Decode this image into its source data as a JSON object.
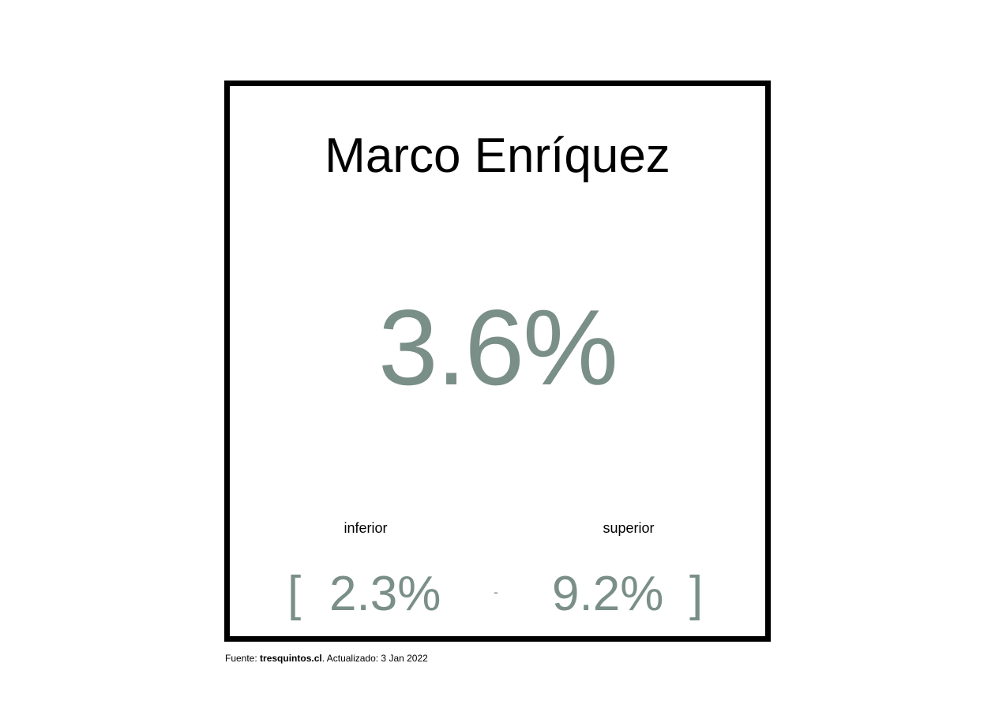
{
  "colors": {
    "accent": "#7a8f87",
    "text": "#000000",
    "border": "#000000",
    "background": "#ffffff"
  },
  "card": {
    "name": "Marco Enríquez",
    "main_value": "3.6%",
    "interval": {
      "lower_label": "inferior",
      "upper_label": "superior",
      "open_bracket": "[",
      "close_bracket": "]",
      "lower_value": "2.3%",
      "separator": "-",
      "upper_value": "9.2%"
    }
  },
  "footer": {
    "prefix": "Fuente: ",
    "source": "tresquintos.cl",
    "suffix": ". Actualizado: 3 Jan 2022"
  }
}
